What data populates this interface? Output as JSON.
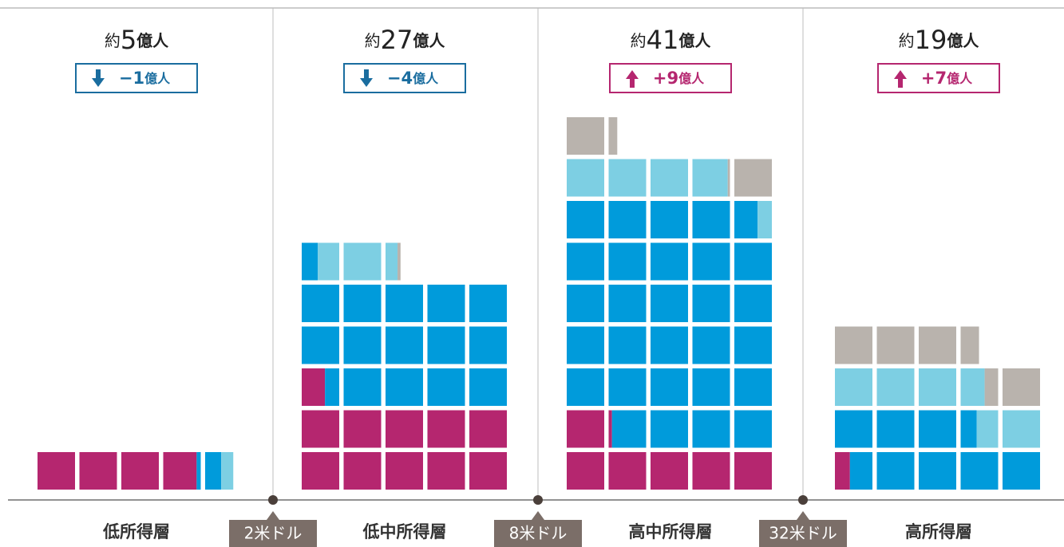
{
  "chart_data": {
    "type": "waffle",
    "categories": [
      "低所得層",
      "低中所得層",
      "高中所得層",
      "高所得層"
    ],
    "total_prefix": [
      "約",
      "約",
      "約",
      "約"
    ],
    "totals": [
      5,
      27,
      41,
      19
    ],
    "total_unit": [
      "億人",
      "億人",
      "億人",
      "億人"
    ],
    "changes": [
      -1,
      -4,
      9,
      7
    ],
    "change_labels": [
      "−1",
      "−4",
      "+9",
      "+7"
    ],
    "change_unit": [
      "億人",
      "億人",
      "億人",
      "億人"
    ],
    "thresholds": [
      "2米ドル",
      "8米ドル",
      "32米ドル"
    ],
    "series": [
      {
        "color": "#b5266f",
        "values": [
          3.89,
          10.62,
          6.09,
          0.4
        ]
      },
      {
        "color": "#009bdb",
        "values": [
          0.54,
          14.81,
          28.53,
          8.03
        ]
      },
      {
        "color": "#7dcfe3",
        "values": [
          0.32,
          1.89,
          4.32,
          5.21
        ]
      },
      {
        "color": "#b9b3ad",
        "values": [
          0,
          0.08,
          2.29,
          4.85
        ]
      }
    ]
  }
}
